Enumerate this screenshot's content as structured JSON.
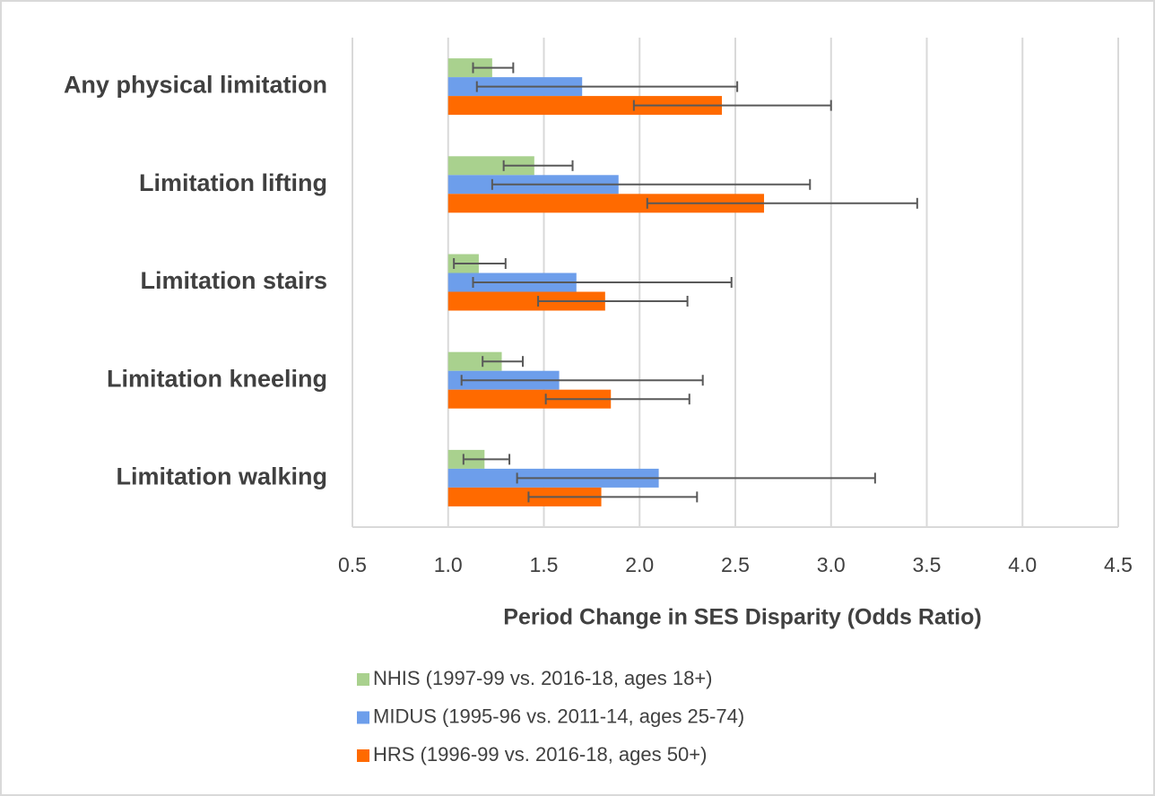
{
  "chart_data": {
    "type": "hbar_error",
    "xlabel": "Period Change in SES Disparity (Odds Ratio)",
    "categories": [
      "Any physical limitation",
      "Limitation lifting",
      "Limitation stairs",
      "Limitation kneeling",
      "Limitation walking"
    ],
    "series": [
      {
        "name": "NHIS (1997-99 vs. 2016-18, ages 18+)",
        "color": "#a9d18e",
        "values": [
          1.23,
          1.45,
          1.16,
          1.28,
          1.19
        ],
        "error_low": [
          1.13,
          1.29,
          1.03,
          1.18,
          1.08
        ],
        "error_high": [
          1.34,
          1.65,
          1.3,
          1.39,
          1.32
        ]
      },
      {
        "name": "MIDUS (1995-96 vs. 2011-14, ages 25-74)",
        "color": "#6d9eeb",
        "values": [
          1.7,
          1.89,
          1.67,
          1.58,
          2.1
        ],
        "error_low": [
          1.15,
          1.23,
          1.13,
          1.07,
          1.36
        ],
        "error_high": [
          2.51,
          2.89,
          2.48,
          2.33,
          3.23
        ]
      },
      {
        "name": "HRS (1996-99 vs. 2016-18, ages 50+)",
        "color": "#ff6a00",
        "values": [
          2.43,
          2.65,
          1.82,
          1.85,
          1.8
        ],
        "error_low": [
          1.97,
          2.04,
          1.47,
          1.51,
          1.42
        ],
        "error_high": [
          3.0,
          3.45,
          2.25,
          2.26,
          2.3
        ]
      }
    ],
    "bar_base": 1.0,
    "xlim": [
      0.5,
      4.5
    ],
    "xticks": [
      {
        "value": 0.5,
        "label": "0.5"
      },
      {
        "value": 1,
        "label": "1.0"
      },
      {
        "value": 1.5,
        "label": "1.5"
      },
      {
        "value": 2,
        "label": "2.0"
      },
      {
        "value": 2.5,
        "label": "2.5"
      },
      {
        "value": 3,
        "label": "3.0"
      },
      {
        "value": 3.5,
        "label": "3.5"
      },
      {
        "value": 4,
        "label": "4.0"
      },
      {
        "value": 4.5,
        "label": "4.5"
      }
    ],
    "grid": true,
    "legend": "bottom"
  }
}
